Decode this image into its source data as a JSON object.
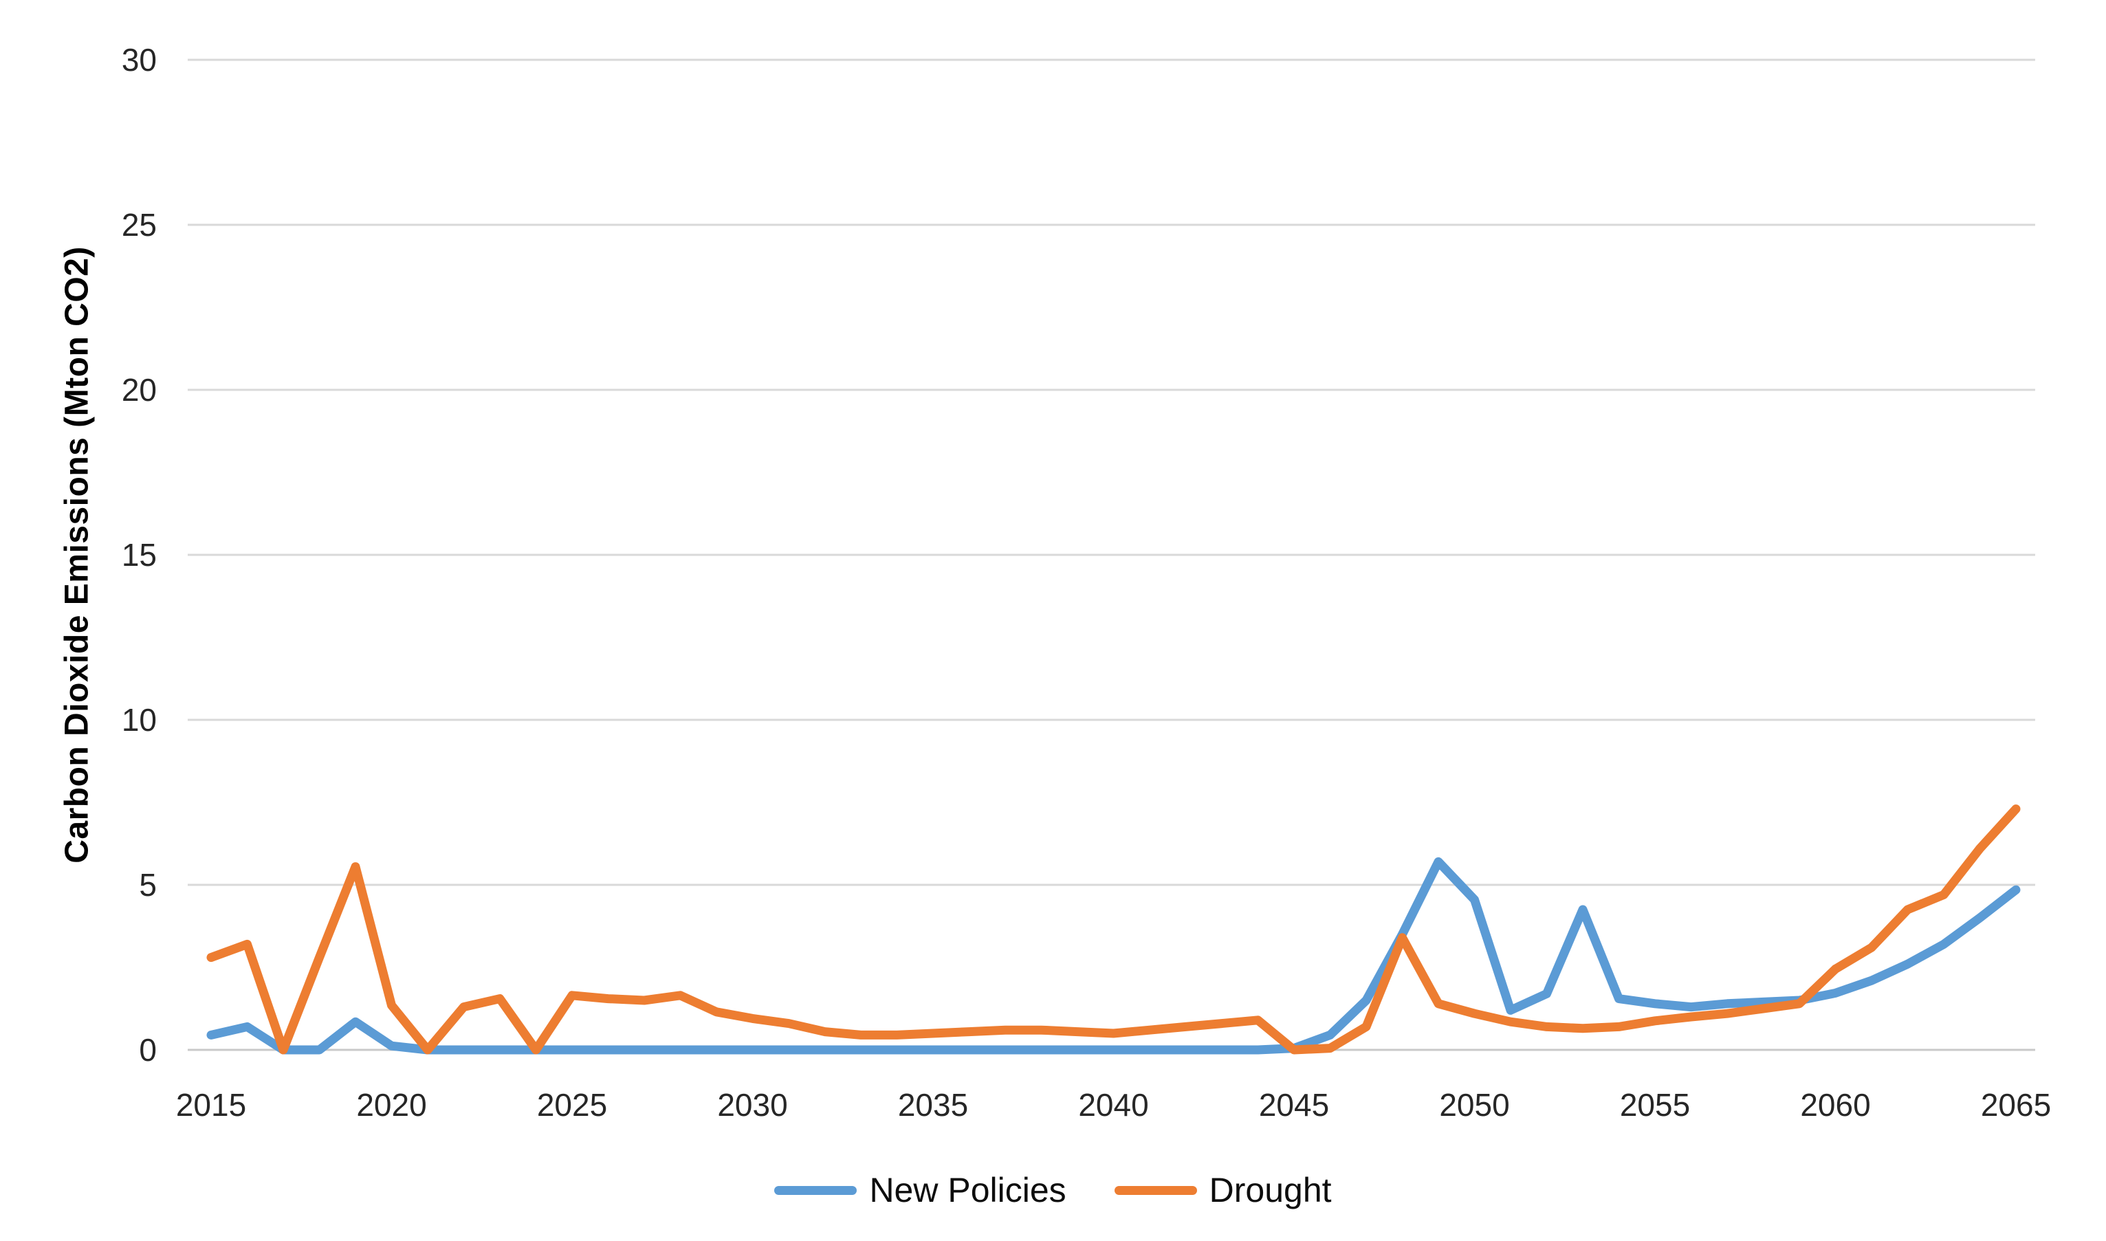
{
  "chart_data": {
    "type": "line",
    "title": "",
    "xlabel": "",
    "ylabel": "Carbon Dioxide Emissions (Mton CO2)",
    "ylim": [
      0,
      30
    ],
    "yticks": [
      0,
      5,
      10,
      15,
      20,
      25,
      30
    ],
    "xticks": [
      2015,
      2020,
      2025,
      2030,
      2035,
      2040,
      2045,
      2050,
      2055,
      2060,
      2065
    ],
    "grid": "horizontal",
    "gridline_color": "#d9d9d9",
    "axis_line_color": "#c9c9c9",
    "tick_label_color": "#262626",
    "legend_position": "bottom-center",
    "x": [
      2015,
      2016,
      2017,
      2018,
      2019,
      2020,
      2021,
      2022,
      2023,
      2024,
      2025,
      2026,
      2027,
      2028,
      2029,
      2030,
      2031,
      2032,
      2033,
      2034,
      2035,
      2036,
      2037,
      2038,
      2039,
      2040,
      2041,
      2042,
      2043,
      2044,
      2045,
      2046,
      2047,
      2048,
      2049,
      2050,
      2051,
      2052,
      2053,
      2054,
      2055,
      2056,
      2057,
      2058,
      2059,
      2060,
      2061,
      2062,
      2063,
      2064,
      2065
    ],
    "series": [
      {
        "name": "New Policies",
        "color": "#5B9BD5",
        "values": [
          0.45,
          0.7,
          0,
          0,
          0.85,
          0.12,
          0,
          0,
          0,
          0,
          0,
          0,
          0,
          0,
          0,
          0,
          0,
          0,
          0,
          0,
          0,
          0,
          0,
          0,
          0,
          0,
          0,
          0,
          0,
          0,
          0.05,
          0.45,
          1.5,
          3.5,
          5.7,
          4.55,
          1.2,
          1.7,
          4.25,
          1.55,
          1.4,
          1.3,
          1.4,
          1.45,
          1.5,
          1.72,
          2.1,
          2.6,
          3.2,
          4.0,
          4.85
        ]
      },
      {
        "name": "Drought",
        "color": "#ED7D31",
        "values": [
          2.8,
          3.2,
          0,
          2.8,
          5.55,
          1.35,
          0,
          1.3,
          1.55,
          0,
          1.65,
          1.55,
          1.5,
          1.65,
          1.15,
          0.95,
          0.8,
          0.55,
          0.45,
          0.45,
          0.5,
          0.55,
          0.6,
          0.6,
          0.55,
          0.5,
          0.6,
          0.7,
          0.8,
          0.9,
          0,
          0.05,
          0.7,
          3.4,
          1.4,
          1.1,
          0.85,
          0.7,
          0.65,
          0.7,
          0.88,
          1.0,
          1.1,
          1.25,
          1.4,
          2.45,
          3.1,
          4.25,
          4.7,
          6.1,
          7.3
        ]
      }
    ]
  }
}
